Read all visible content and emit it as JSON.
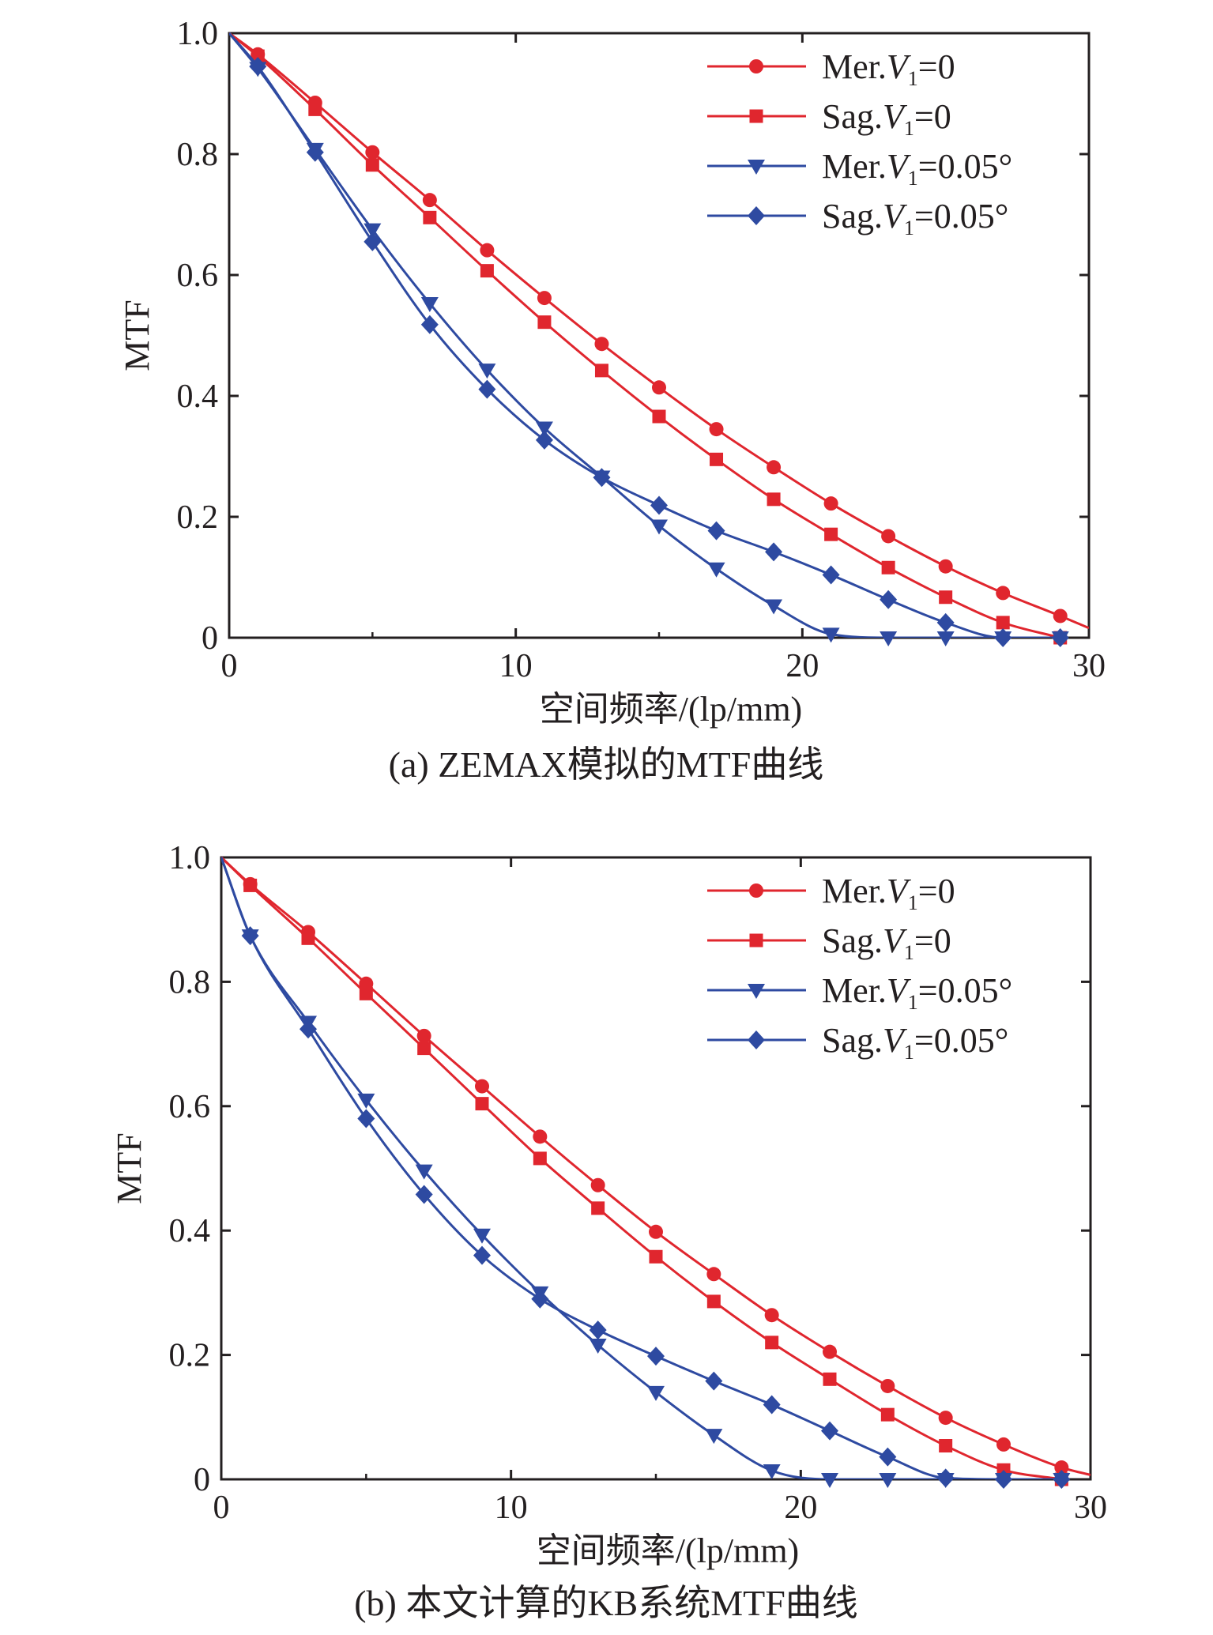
{
  "colors": {
    "red": "#e0262e",
    "blue": "#2e4aa1",
    "axis": "#231f20"
  },
  "legend_position": "top-right",
  "chart_data": [
    {
      "type": "line",
      "caption": "(a) ZEMAX模拟的MTF曲线",
      "xlabel": "空间频率/(lp/mm)",
      "ylabel": "MTF",
      "xlim": [
        0,
        30
      ],
      "ylim": [
        0,
        1.0
      ],
      "x_ticks": [
        "0",
        "10",
        "20",
        "30"
      ],
      "y_ticks": [
        "0",
        "0.2",
        "0.4",
        "0.6",
        "0.8",
        "1.0"
      ],
      "grid": false,
      "legend": "top-right",
      "series": [
        {
          "name": "Mer.",
          "name_var": "V",
          "name_sub": "1",
          "name_rest": "=0",
          "color": "#e0262e",
          "marker": "circle",
          "x": [
            0,
            1,
            3,
            5,
            7,
            9,
            11,
            13,
            15,
            17,
            19,
            21,
            23,
            25,
            27,
            29,
            30
          ],
          "y": [
            1.0,
            0.965,
            0.885,
            0.803,
            0.724,
            0.641,
            0.562,
            0.486,
            0.414,
            0.345,
            0.282,
            0.222,
            0.168,
            0.118,
            0.074,
            0.036,
            0.016
          ]
        },
        {
          "name": "Sag.",
          "name_var": "V",
          "name_sub": "1",
          "name_rest": "=0",
          "color": "#e0262e",
          "marker": "square",
          "x": [
            0,
            1,
            3,
            5,
            7,
            9,
            11,
            13,
            15,
            17,
            19,
            21,
            23,
            25,
            27,
            29
          ],
          "y": [
            1.0,
            0.962,
            0.874,
            0.782,
            0.695,
            0.607,
            0.522,
            0.442,
            0.366,
            0.295,
            0.229,
            0.171,
            0.116,
            0.067,
            0.025,
            0.0
          ]
        },
        {
          "name": "Mer.",
          "name_var": "V",
          "name_sub": "1",
          "name_rest": "=0.05°",
          "color": "#2e4aa1",
          "marker": "triangle-down",
          "x": [
            0,
            1,
            3,
            5,
            7,
            9,
            11,
            13,
            15,
            17,
            19,
            21,
            23,
            25,
            27,
            29
          ],
          "y": [
            1.0,
            0.942,
            0.808,
            0.675,
            0.553,
            0.443,
            0.347,
            0.266,
            0.185,
            0.114,
            0.053,
            0.006,
            0.0,
            0.0,
            0.0,
            0.0
          ]
        },
        {
          "name": "Sag.",
          "name_var": "V",
          "name_sub": "1",
          "name_rest": "=0.05°",
          "color": "#2e4aa1",
          "marker": "diamond",
          "x": [
            0,
            1,
            3,
            5,
            7,
            9,
            11,
            13,
            15,
            17,
            19,
            21,
            23,
            25,
            27,
            29
          ],
          "y": [
            1.0,
            0.945,
            0.803,
            0.655,
            0.518,
            0.411,
            0.327,
            0.265,
            0.219,
            0.177,
            0.142,
            0.104,
            0.063,
            0.025,
            0.0,
            0.0
          ]
        }
      ]
    },
    {
      "type": "line",
      "caption": "(b) 本文计算的KB系统MTF曲线",
      "xlabel": "空间频率/(lp/mm)",
      "ylabel": "MTF",
      "xlim": [
        0,
        30
      ],
      "ylim": [
        0,
        1.0
      ],
      "x_ticks": [
        "0",
        "10",
        "20",
        "30"
      ],
      "y_ticks": [
        "0",
        "0.2",
        "0.4",
        "0.6",
        "0.8",
        "1.0"
      ],
      "grid": false,
      "legend": "top-right",
      "series": [
        {
          "name": "Mer.",
          "name_var": "V",
          "name_sub": "1",
          "name_rest": "=0",
          "color": "#e0262e",
          "marker": "circle",
          "x": [
            0,
            1,
            3,
            5,
            7,
            9,
            11,
            13,
            15,
            17,
            19,
            21,
            23,
            25,
            27,
            29,
            30
          ],
          "y": [
            1.0,
            0.957,
            0.88,
            0.797,
            0.713,
            0.632,
            0.551,
            0.473,
            0.398,
            0.33,
            0.264,
            0.205,
            0.15,
            0.099,
            0.056,
            0.019,
            0.007
          ]
        },
        {
          "name": "Sag.",
          "name_var": "V",
          "name_sub": "1",
          "name_rest": "=0",
          "color": "#e0262e",
          "marker": "square",
          "x": [
            0,
            1,
            3,
            5,
            7,
            9,
            11,
            13,
            15,
            17,
            19,
            21,
            23,
            25,
            27,
            29
          ],
          "y": [
            1.0,
            0.955,
            0.87,
            0.781,
            0.693,
            0.604,
            0.516,
            0.436,
            0.358,
            0.286,
            0.22,
            0.161,
            0.104,
            0.054,
            0.015,
            0.0
          ]
        },
        {
          "name": "Mer.",
          "name_var": "V",
          "name_sub": "1",
          "name_rest": "=0.05°",
          "color": "#2e4aa1",
          "marker": "triangle-down",
          "x": [
            0,
            1,
            3,
            5,
            7,
            9,
            11,
            13,
            15,
            17,
            19,
            21,
            23,
            25,
            27,
            29
          ],
          "y": [
            1.0,
            0.874,
            0.735,
            0.61,
            0.496,
            0.393,
            0.3,
            0.216,
            0.14,
            0.071,
            0.014,
            0.0,
            0.0,
            0.0,
            0.0,
            0.0
          ]
        },
        {
          "name": "Sag.",
          "name_var": "V",
          "name_sub": "1",
          "name_rest": "=0.05°",
          "color": "#2e4aa1",
          "marker": "diamond",
          "x": [
            0,
            1,
            3,
            5,
            7,
            9,
            11,
            13,
            15,
            17,
            19,
            21,
            23,
            25,
            27,
            29
          ],
          "y": [
            1.0,
            0.874,
            0.724,
            0.58,
            0.458,
            0.36,
            0.29,
            0.24,
            0.198,
            0.158,
            0.12,
            0.078,
            0.036,
            0.002,
            0.0,
            0.0
          ]
        }
      ]
    }
  ]
}
